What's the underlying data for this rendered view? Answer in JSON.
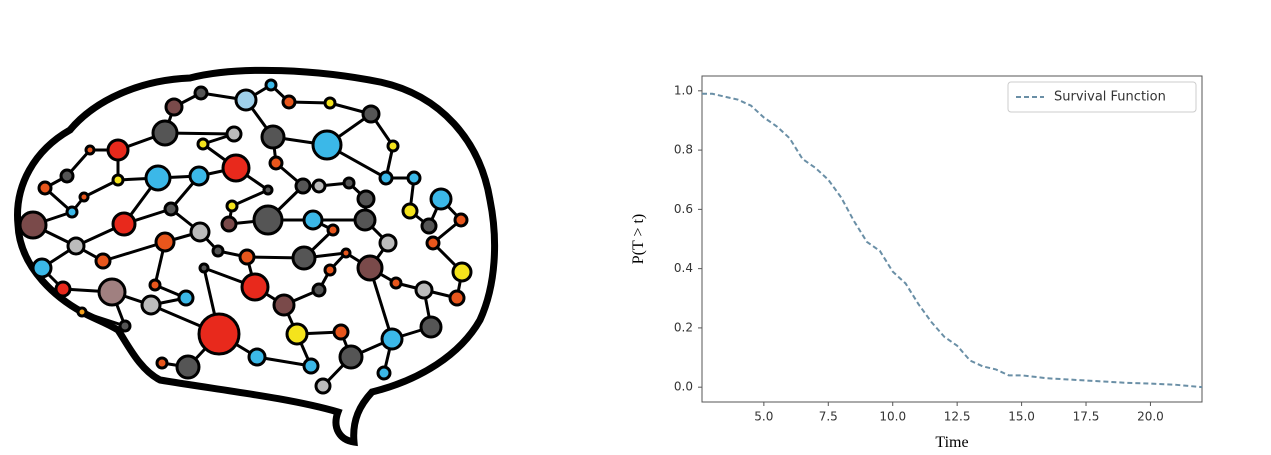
{
  "chart_data": {
    "type": "line",
    "xlabel": "Time",
    "ylabel": "P(T > t)",
    "x": [
      2.6,
      3.0,
      3.5,
      4.0,
      4.5,
      5.0,
      5.5,
      6.0,
      6.5,
      7.0,
      7.5,
      8.0,
      8.5,
      9.0,
      9.5,
      10.0,
      10.5,
      11.0,
      11.5,
      12.0,
      12.5,
      13.0,
      13.5,
      14.0,
      14.5,
      15.0,
      16.0,
      17.0,
      18.0,
      19.0,
      20.0,
      21.0,
      22.0
    ],
    "series": [
      {
        "name": "Survival Function",
        "color": "#6a8fa6",
        "values": [
          0.99,
          0.99,
          0.98,
          0.97,
          0.95,
          0.91,
          0.88,
          0.84,
          0.77,
          0.74,
          0.7,
          0.64,
          0.56,
          0.49,
          0.46,
          0.39,
          0.35,
          0.28,
          0.22,
          0.17,
          0.14,
          0.09,
          0.07,
          0.06,
          0.04,
          0.04,
          0.03,
          0.025,
          0.02,
          0.015,
          0.012,
          0.008,
          0.0
        ]
      }
    ],
    "xlim": [
      2.6,
      22
    ],
    "ylim": [
      -0.05,
      1.05
    ],
    "xticks": [
      {
        "value": 5,
        "label": "5.0"
      },
      7.5,
      {
        "value": 10,
        "label": "10.0"
      },
      12.5,
      {
        "value": 15,
        "label": "15.0"
      },
      17.5,
      {
        "value": 20,
        "label": "20.0"
      }
    ],
    "yticks": [
      {
        "value": 0,
        "label": "0.0"
      },
      0.2,
      0.4,
      0.6,
      0.8,
      {
        "value": 1,
        "label": "1.0"
      }
    ],
    "legend": "upper right",
    "dashed": true
  }
}
